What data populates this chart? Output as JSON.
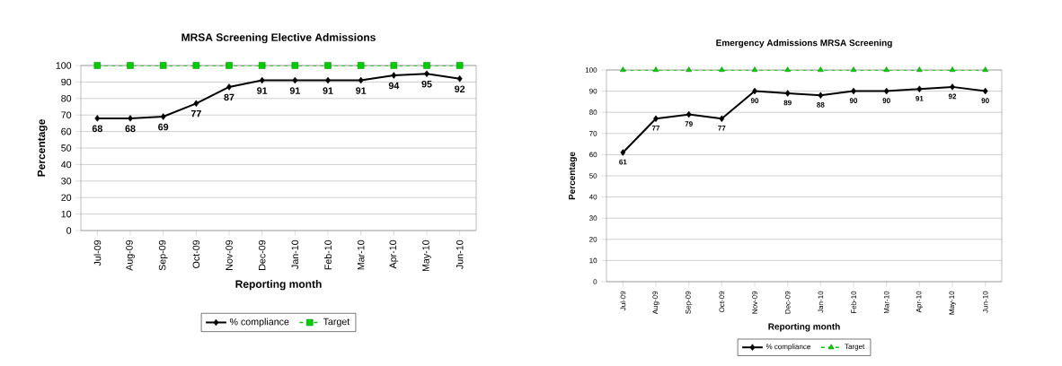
{
  "chart_data": [
    {
      "type": "line",
      "title": "MRSA Screening Elective Admissions",
      "xlabel": "Reporting month",
      "ylabel": "Percentage",
      "categories": [
        "Jul-09",
        "Aug-09",
        "Sep-09",
        "Oct-09",
        "Nov-09",
        "Dec-09",
        "Jan-10",
        "Feb-10",
        "Mar-10",
        "Apr-10",
        "May-10",
        "Jun-10"
      ],
      "ylim": [
        0,
        100
      ],
      "yticks": [
        0,
        10,
        20,
        30,
        40,
        50,
        60,
        70,
        80,
        90,
        100
      ],
      "grid": "y",
      "legend": "bottom",
      "series": [
        {
          "name": "% compliance",
          "color": "#000000",
          "marker": "diamond",
          "line_style": "solid",
          "values": [
            68,
            68,
            69,
            77,
            87,
            91,
            91,
            91,
            91,
            94,
            95,
            92
          ],
          "value_labels": [
            "68",
            "68",
            "69",
            "77",
            "87",
            "91",
            "91",
            "91",
            "91",
            "94",
            "95",
            "92"
          ]
        },
        {
          "name": "Target",
          "color": "#00cc00",
          "marker": "square",
          "line_style": "dashed",
          "values": [
            100,
            100,
            100,
            100,
            100,
            100,
            100,
            100,
            100,
            100,
            100,
            100
          ]
        }
      ]
    },
    {
      "type": "line",
      "title": "Emergency Admissions MRSA Screening",
      "xlabel": "Reporting month",
      "ylabel": "Percentage",
      "categories": [
        "Jul-09",
        "Aug-09",
        "Sep-09",
        "Oct-09",
        "Nov-09",
        "Dec-09",
        "Jan-10",
        "Feb-10",
        "Mar-10",
        "Apr-10",
        "May-10",
        "Jun-10"
      ],
      "ylim": [
        0,
        100
      ],
      "yticks": [
        0,
        10,
        20,
        30,
        40,
        50,
        60,
        70,
        80,
        90,
        100
      ],
      "grid": "y",
      "legend": "bottom",
      "series": [
        {
          "name": "% compliance",
          "color": "#000000",
          "marker": "diamond",
          "line_style": "solid",
          "values": [
            61,
            77,
            79,
            77,
            90,
            89,
            88,
            90,
            90,
            91,
            92,
            90
          ],
          "value_labels": [
            "61",
            "77",
            "79",
            "77",
            "90",
            "89",
            "88",
            "90",
            "90",
            "91",
            "92",
            "90"
          ]
        },
        {
          "name": "Target",
          "color": "#00cc00",
          "marker": "triangle",
          "line_style": "dashed",
          "values": [
            100,
            100,
            100,
            100,
            100,
            100,
            100,
            100,
            100,
            100,
            100,
            100
          ]
        }
      ]
    }
  ]
}
